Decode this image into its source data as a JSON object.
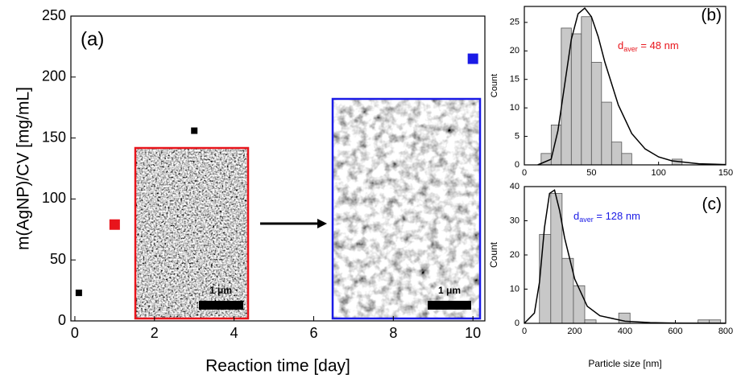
{
  "chart_data": [
    {
      "type": "scatter",
      "label": "(a)",
      "x_label": "Reaction time [day]",
      "y_label": "m(AgNP)/CV [mg/mL]",
      "xlim": [
        -0.1,
        10.3
      ],
      "xticks": [
        0,
        2,
        4,
        6,
        8,
        10
      ],
      "ylim": [
        0,
        250
      ],
      "yticks": [
        0,
        50,
        100,
        150,
        200,
        250
      ],
      "series": [
        {
          "color": "#000000",
          "marker": "small",
          "x": [
            0.1,
            3
          ],
          "values": [
            23,
            156
          ]
        },
        {
          "color": "#e8141b",
          "marker": "large",
          "x": [
            1
          ],
          "values": [
            79
          ]
        },
        {
          "color": "#1a1ae6",
          "marker": "large",
          "x": [
            10
          ],
          "values": [
            215
          ]
        }
      ],
      "insets": [
        {
          "scale_bar": "1 μm"
        },
        {
          "scale_bar": "1 μm"
        }
      ]
    },
    {
      "type": "histogram",
      "label": "(b)",
      "y_label": "Count",
      "xlim": [
        0,
        150
      ],
      "xticks": [
        0,
        50,
        100,
        150
      ],
      "ylim": [
        0,
        27.8
      ],
      "yticks": [
        0,
        5,
        10,
        15,
        20,
        25
      ],
      "bins": [
        12.5,
        20,
        27.5,
        35,
        42.5,
        50,
        57.5,
        65,
        72.5,
        80,
        87.5,
        95,
        102.5,
        110,
        117.5
      ],
      "values": [
        2,
        7,
        24,
        23,
        26,
        18,
        11,
        4,
        2,
        0,
        0,
        0,
        0,
        1
      ],
      "color": "#c8c8c8",
      "fit": {
        "x": [
          10,
          20,
          25,
          30,
          35,
          40,
          45,
          50,
          55,
          60,
          70,
          80,
          90,
          100,
          110,
          130,
          150
        ],
        "values": [
          0,
          1,
          6,
          14,
          22,
          26.5,
          27.5,
          26,
          22.5,
          18,
          10.5,
          5.5,
          2.8,
          1.4,
          0.7,
          0.2,
          0.05
        ]
      },
      "annotation": {
        "main": "d",
        "sub": "aver",
        "rest": " = 48 nm",
        "color": "#e8141b"
      }
    },
    {
      "type": "histogram",
      "label": "(c)",
      "x_label": "Particle size [nm]",
      "y_label": "Count",
      "xlim": [
        0,
        800
      ],
      "xticks": [
        0,
        200,
        400,
        600,
        800
      ],
      "ylim": [
        0,
        40
      ],
      "yticks": [
        0,
        10,
        20,
        30,
        40
      ],
      "bins": [
        60,
        105,
        150,
        195,
        240,
        285,
        330,
        375,
        420,
        465,
        510,
        555,
        600,
        645,
        690,
        735,
        780
      ],
      "values": [
        26,
        38,
        19,
        11,
        1,
        0,
        0,
        3,
        0,
        0,
        0,
        0,
        0,
        0,
        1,
        1
      ],
      "color": "#c8c8c8",
      "fit": {
        "x": [
          0,
          40,
          60,
          80,
          100,
          120,
          140,
          160,
          200,
          250,
          300,
          400,
          500,
          600,
          800
        ],
        "values": [
          0,
          3,
          12,
          28,
          38,
          39,
          33,
          25,
          13,
          5,
          2.2,
          0.6,
          0.2,
          0.08,
          0.02
        ]
      },
      "annotation": {
        "main": "d",
        "sub": "aver",
        "rest": " = 128 nm",
        "color": "#1a1ae6"
      }
    }
  ]
}
